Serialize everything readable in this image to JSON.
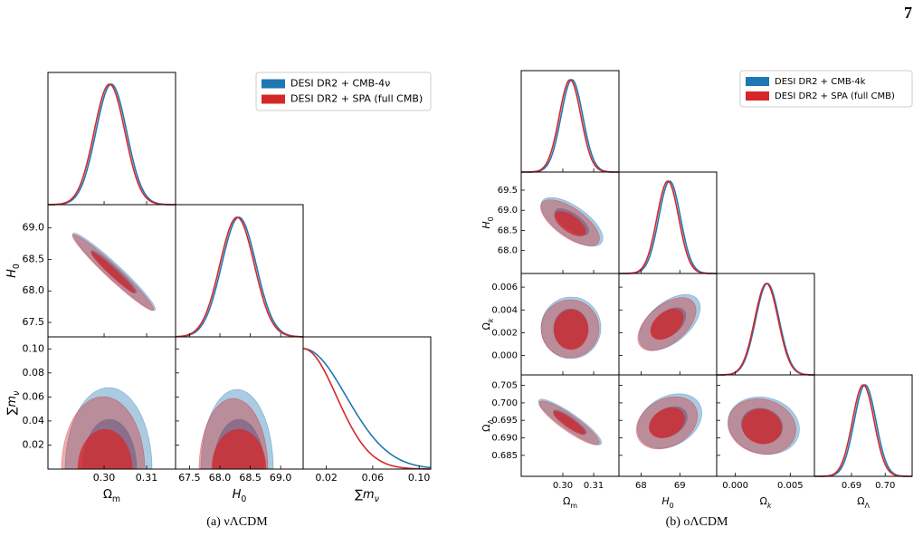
{
  "page_number": "7",
  "figures": [
    {
      "caption": "(a) νΛCDM",
      "legend": [
        {
          "name": "DESI DR2 + CMB-4ν",
          "color": "#1f77b4"
        },
        {
          "name": "DESI DR2 + SPA (full CMB)",
          "color": "#d62728"
        }
      ],
      "params": [
        {
          "label": [
            {
              "text": "Ω"
            },
            {
              "text": "m",
              "sub": true
            }
          ],
          "lim": [
            0.2868,
            0.3168
          ],
          "xticks": [
            {
              "value": 0.3,
              "label": "0.30"
            },
            0.31
          ]
        },
        {
          "label": [
            {
              "text": "H",
              "italic": true
            },
            {
              "text": "0",
              "sub": true
            }
          ],
          "lim": [
            67.27,
            69.37
          ],
          "xticks": [
            67.5,
            {
              "value": 68,
              "label": "68.0"
            },
            68.5,
            {
              "value": 69,
              "label": "69.0"
            }
          ],
          "yticks": [
            67.5,
            {
              "value": 68,
              "label": "68.0"
            },
            68.5,
            {
              "value": 69,
              "label": "69.0"
            }
          ]
        },
        {
          "label": [
            {
              "text": "∑"
            },
            {
              "text": "m",
              "italic": true
            },
            {
              "text": "ν",
              "sub": true,
              "italic": true
            }
          ],
          "lim": [
            0,
            0.11
          ],
          "xticks": [
            0.02,
            0.06,
            {
              "value": 0.1,
              "label": "0.10"
            }
          ],
          "yticks": [
            0.02,
            0.04,
            0.06,
            0.08,
            {
              "value": 0.1,
              "label": "0.10"
            }
          ]
        }
      ]
    },
    {
      "caption": "(b) oΛCDM",
      "legend": [
        {
          "name": "DESI DR2 + CMB-4k",
          "color": "#1f77b4"
        },
        {
          "name": "DESI DR2 + SPA (full CMB)",
          "color": "#d62728"
        }
      ],
      "params": [
        {
          "label": [
            {
              "text": "Ω"
            },
            {
              "text": "m",
              "sub": true
            }
          ],
          "lim": [
            0.2865,
            0.3182
          ],
          "xticks": [
            {
              "value": 0.3,
              "label": "0.30"
            },
            0.31
          ]
        },
        {
          "label": [
            {
              "text": "H",
              "italic": true
            },
            {
              "text": "0",
              "sub": true
            }
          ],
          "lim": [
            67.43,
            69.95
          ],
          "xticks": [
            68,
            69
          ],
          "yticks": [
            {
              "value": 68,
              "label": "68.0"
            },
            68.5,
            {
              "value": 69,
              "label": "69.0"
            },
            69.5
          ]
        },
        {
          "label": [
            {
              "text": "Ω"
            },
            {
              "text": "k",
              "sub": true,
              "italic": true
            }
          ],
          "lim": [
            -0.0017,
            0.0072
          ],
          "xticks": [
            {
              "value": 0,
              "label": "0.000"
            },
            0.005
          ],
          "yticks": [
            {
              "value": 0,
              "label": "0.000"
            },
            0.002,
            0.004,
            0.006
          ]
        },
        {
          "label": [
            {
              "text": "Ω"
            },
            {
              "text": "Λ",
              "sub": true
            }
          ],
          "lim": [
            0.679,
            0.708
          ],
          "xticks": [
            0.69,
            {
              "value": 0.7,
              "label": "0.70"
            }
          ],
          "yticks": [
            0.685,
            {
              "value": 0.69,
              "label": "0.690"
            },
            0.695,
            {
              "value": 0.7,
              "label": "0.700"
            },
            0.705
          ]
        }
      ]
    }
  ]
}
